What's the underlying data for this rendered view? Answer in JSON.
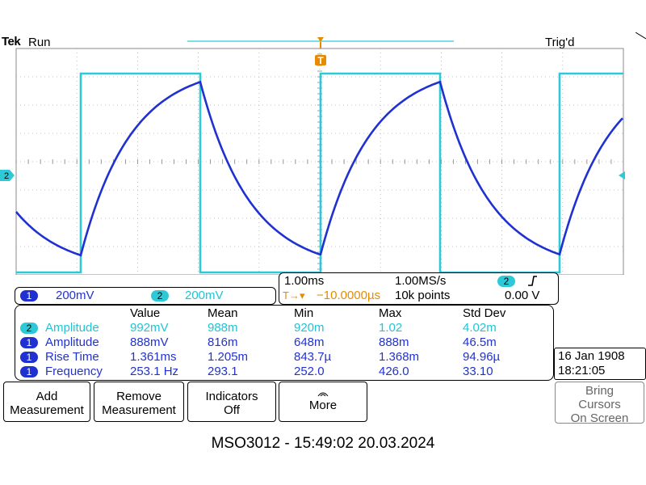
{
  "header": {
    "brand": "Tek",
    "run_state": "Run",
    "trig_state": "Trig'd"
  },
  "markers": {
    "trigger_position": "T",
    "ch2_level": "2"
  },
  "channels": [
    {
      "badge": "1",
      "scale": "200mV",
      "color": "#2233cc"
    },
    {
      "badge": "2",
      "scale": "200mV",
      "color": "#22c4d4"
    }
  ],
  "timebase": {
    "time_per_div": "1.00ms",
    "sample_rate": "1.00MS/s",
    "trigger_source": "2",
    "trigger_slope": "rising-edge-icon",
    "trigger_offset_glyph": "T→▾",
    "trigger_offset": "−10.0000µs",
    "record_length": "10k points",
    "trigger_level": "0.00 V"
  },
  "measurements": {
    "headers": [
      "Value",
      "Mean",
      "Min",
      "Max",
      "Std Dev"
    ],
    "rows": [
      {
        "ch": "2",
        "name": "Amplitude",
        "value": "992mV",
        "mean": "988m",
        "min": "920m",
        "max": "1.02",
        "std": "4.02m"
      },
      {
        "ch": "1",
        "name": "Amplitude",
        "value": "888mV",
        "mean": "816m",
        "min": "648m",
        "max": "888m",
        "std": "46.5m"
      },
      {
        "ch": "1",
        "name": "Rise Time",
        "value": "1.361ms",
        "mean": "1.205m",
        "min": "843.7µ",
        "max": "1.368m",
        "std": "94.96µ"
      },
      {
        "ch": "1",
        "name": "Frequency",
        "value": "253.1 Hz",
        "mean": "293.1",
        "min": "252.0",
        "max": "426.0",
        "std": "33.10"
      }
    ]
  },
  "clock": {
    "date": "16 Jan 1908",
    "time": "18:21:05"
  },
  "menu": {
    "add_line1": "Add",
    "add_line2": "Measurement",
    "remove_line1": "Remove",
    "remove_line2": "Measurement",
    "indicators_line1": "Indicators",
    "indicators_line2": "Off",
    "more": "More",
    "cursors_line1": "Bring",
    "cursors_line2": "Cursors",
    "cursors_line3": "On Screen"
  },
  "footer": "MSO3012 - 15:49:02   20.03.2024",
  "colors": {
    "ch1": "#2233cc",
    "ch2": "#22c4d4",
    "trigger": "#e68a00",
    "grid": "#9a9a9a"
  }
}
